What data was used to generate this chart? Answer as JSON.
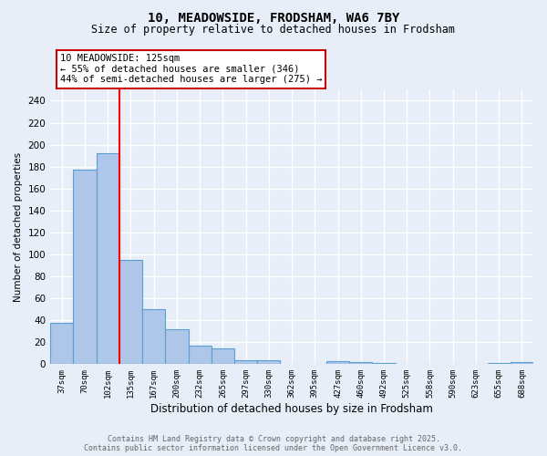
{
  "title1": "10, MEADOWSIDE, FRODSHAM, WA6 7BY",
  "title2": "Size of property relative to detached houses in Frodsham",
  "xlabel": "Distribution of detached houses by size in Frodsham",
  "ylabel": "Number of detached properties",
  "bin_labels": [
    "37sqm",
    "70sqm",
    "102sqm",
    "135sqm",
    "167sqm",
    "200sqm",
    "232sqm",
    "265sqm",
    "297sqm",
    "330sqm",
    "362sqm",
    "395sqm",
    "427sqm",
    "460sqm",
    "492sqm",
    "525sqm",
    "558sqm",
    "590sqm",
    "623sqm",
    "655sqm",
    "688sqm"
  ],
  "bar_values": [
    38,
    177,
    192,
    95,
    50,
    32,
    17,
    14,
    4,
    4,
    0,
    0,
    3,
    2,
    1,
    0,
    0,
    0,
    0,
    1,
    2
  ],
  "bar_color": "#aec6e8",
  "bar_edge_color": "#5a9fd4",
  "background_color": "#e8eef8",
  "grid_color": "#ffffff",
  "annotation_text": "10 MEADOWSIDE: 125sqm\n← 55% of detached houses are smaller (346)\n44% of semi-detached houses are larger (275) →",
  "annotation_box_color": "#ffffff",
  "annotation_box_edge": "#cc0000",
  "ylim": [
    0,
    250
  ],
  "yticks": [
    0,
    20,
    40,
    60,
    80,
    100,
    120,
    140,
    160,
    180,
    200,
    220,
    240
  ],
  "red_line_x": 2.5,
  "footnote1": "Contains HM Land Registry data © Crown copyright and database right 2025.",
  "footnote2": "Contains public sector information licensed under the Open Government Licence v3.0."
}
